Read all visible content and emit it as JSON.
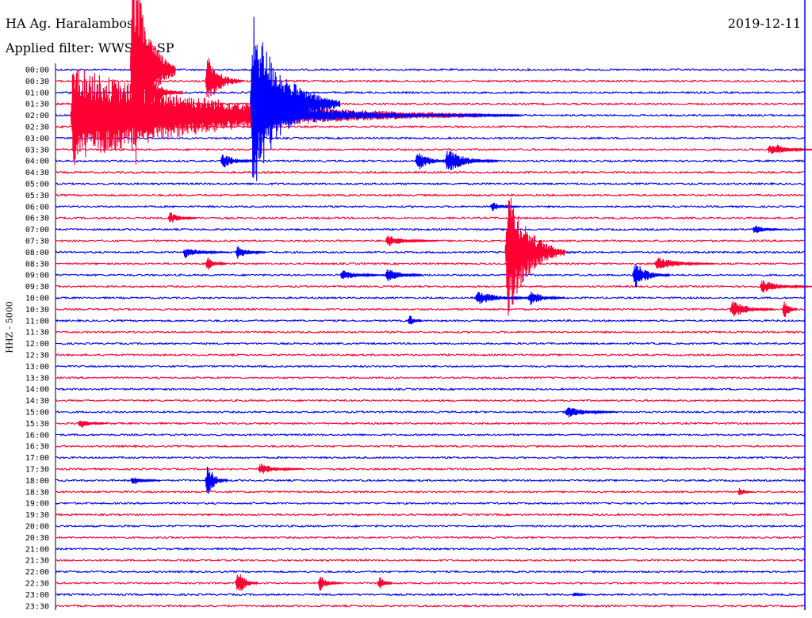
{
  "header": {
    "station": "HA Ag. Haralambos",
    "filter": "Applied filter: WWSSN-SP",
    "date": "2019-12-11",
    "channel": "HHZ - 5000"
  },
  "colors": {
    "trace_a": "#0000ff",
    "trace_b": "#ff0033",
    "background": "#ffffff"
  },
  "chart_data": {
    "type": "line",
    "title": "HA Ag. Haralambos",
    "ylabel": "HHZ - 5000",
    "grid": false,
    "legend": "none",
    "rows": [
      "00:00",
      "00:30",
      "01:00",
      "01:30",
      "02:00",
      "02:30",
      "03:00",
      "03:30",
      "04:00",
      "04:30",
      "05:00",
      "05:30",
      "06:00",
      "06:30",
      "07:00",
      "07:30",
      "08:00",
      "08:30",
      "09:00",
      "09:30",
      "10:00",
      "10:30",
      "11:00",
      "11:30",
      "12:00",
      "12:30",
      "13:00",
      "13:30",
      "14:00",
      "14:30",
      "15:00",
      "15:30",
      "16:00",
      "16:30",
      "17:00",
      "17:30",
      "18:00",
      "18:30",
      "19:00",
      "19:30",
      "20:00",
      "20:30",
      "21:00",
      "21:30",
      "22:00",
      "22:30",
      "23:00",
      "23:30"
    ],
    "trace_colors": [
      "#0000ff",
      "#ff0033"
    ],
    "row_minutes": 30,
    "events": [
      {
        "row": 0,
        "t": 0.1,
        "amp": 180,
        "dur": 0.06,
        "color": "#ff0033"
      },
      {
        "row": 1,
        "t": 0.2,
        "amp": 40,
        "dur": 0.05,
        "color": "#ff0033"
      },
      {
        "row": 2,
        "t": 0.12,
        "amp": 30,
        "dur": 0.05,
        "color": "#ff0033"
      },
      {
        "row": 4,
        "t": 0.02,
        "amp": 65,
        "dur": 0.55,
        "color": "#ff0033"
      },
      {
        "row": 3,
        "t": 0.26,
        "amp": 125,
        "dur": 0.12,
        "color": "#0000ff"
      },
      {
        "row": 4,
        "t": 0.27,
        "amp": 18,
        "dur": 0.35,
        "color": "#0000ff"
      },
      {
        "row": 7,
        "t": 0.95,
        "amp": 8,
        "dur": 0.06,
        "color": "#ff0033"
      },
      {
        "row": 7,
        "t": 0.96,
        "amp": 8,
        "dur": 0.05,
        "color": "#ff0033"
      },
      {
        "row": 8,
        "t": 0.22,
        "amp": 12,
        "dur": 0.05,
        "color": "#0000ff"
      },
      {
        "row": 8,
        "t": 0.48,
        "amp": 16,
        "dur": 0.05,
        "color": "#0000ff"
      },
      {
        "row": 8,
        "t": 0.52,
        "amp": 18,
        "dur": 0.07,
        "color": "#0000ff"
      },
      {
        "row": 12,
        "t": 0.58,
        "amp": 8,
        "dur": 0.04,
        "color": "#0000ff"
      },
      {
        "row": 13,
        "t": 0.15,
        "amp": 10,
        "dur": 0.04,
        "color": "#ff0033"
      },
      {
        "row": 14,
        "t": 0.93,
        "amp": 8,
        "dur": 0.04,
        "color": "#0000ff"
      },
      {
        "row": 15,
        "t": 0.44,
        "amp": 9,
        "dur": 0.07,
        "color": "#ff0033"
      },
      {
        "row": 16,
        "t": 0.6,
        "amp": 105,
        "dur": 0.08,
        "color": "#ff0033"
      },
      {
        "row": 16,
        "t": 0.17,
        "amp": 9,
        "dur": 0.06,
        "color": "#0000ff"
      },
      {
        "row": 16,
        "t": 0.24,
        "amp": 12,
        "dur": 0.04,
        "color": "#0000ff"
      },
      {
        "row": 17,
        "t": 0.2,
        "amp": 12,
        "dur": 0.03,
        "color": "#ff0033"
      },
      {
        "row": 17,
        "t": 0.8,
        "amp": 10,
        "dur": 0.08,
        "color": "#ff0033"
      },
      {
        "row": 18,
        "t": 0.77,
        "amp": 22,
        "dur": 0.05,
        "color": "#0000ff"
      },
      {
        "row": 18,
        "t": 0.38,
        "amp": 8,
        "dur": 0.06,
        "color": "#0000ff"
      },
      {
        "row": 18,
        "t": 0.44,
        "amp": 12,
        "dur": 0.05,
        "color": "#0000ff"
      },
      {
        "row": 19,
        "t": 0.94,
        "amp": 10,
        "dur": 0.07,
        "color": "#ff0033"
      },
      {
        "row": 20,
        "t": 0.56,
        "amp": 10,
        "dur": 0.08,
        "color": "#0000ff"
      },
      {
        "row": 20,
        "t": 0.63,
        "amp": 12,
        "dur": 0.05,
        "color": "#0000ff"
      },
      {
        "row": 21,
        "t": 0.9,
        "amp": 14,
        "dur": 0.06,
        "color": "#ff0033"
      },
      {
        "row": 21,
        "t": 0.97,
        "amp": 20,
        "dur": 0.02,
        "color": "#ff0033"
      },
      {
        "row": 22,
        "t": 0.47,
        "amp": 12,
        "dur": 0.02,
        "color": "#0000ff"
      },
      {
        "row": 31,
        "t": 0.03,
        "amp": 8,
        "dur": 0.04,
        "color": "#ff0033"
      },
      {
        "row": 30,
        "t": 0.68,
        "amp": 9,
        "dur": 0.07,
        "color": "#0000ff"
      },
      {
        "row": 36,
        "t": 0.2,
        "amp": 28,
        "dur": 0.03,
        "color": "#0000ff"
      },
      {
        "row": 36,
        "t": 0.1,
        "amp": 8,
        "dur": 0.04,
        "color": "#0000ff"
      },
      {
        "row": 35,
        "t": 0.27,
        "amp": 9,
        "dur": 0.06,
        "color": "#ff0033"
      },
      {
        "row": 37,
        "t": 0.91,
        "amp": 10,
        "dur": 0.02,
        "color": "#ff0033"
      },
      {
        "row": 45,
        "t": 0.24,
        "amp": 24,
        "dur": 0.03,
        "color": "#ff0033"
      },
      {
        "row": 45,
        "t": 0.35,
        "amp": 14,
        "dur": 0.03,
        "color": "#ff0033"
      },
      {
        "row": 45,
        "t": 0.43,
        "amp": 14,
        "dur": 0.02,
        "color": "#ff0033"
      },
      {
        "row": 46,
        "t": 0.69,
        "amp": 6,
        "dur": 0.02,
        "color": "#0000ff"
      }
    ]
  }
}
